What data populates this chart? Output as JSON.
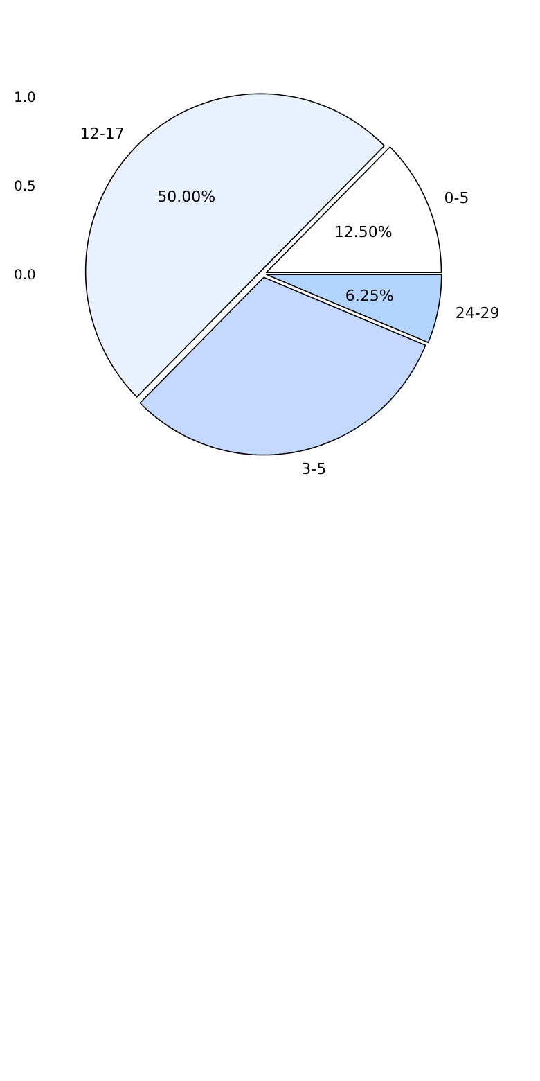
{
  "chart_data": {
    "type": "pie",
    "categories": [
      "0-5",
      "12-17",
      "3-5",
      "24-29"
    ],
    "values": [
      12.5,
      50,
      31.25,
      6.25
    ],
    "colors": [
      "#ffffff",
      "#eaf1fe",
      "#c5d8ff",
      "#b3d4ff"
    ],
    "value_labels": [
      "12.50%",
      "50.00%",
      null,
      "6.25%"
    ],
    "annotations": [
      "1.0",
      "0.5",
      "0.0"
    ]
  }
}
